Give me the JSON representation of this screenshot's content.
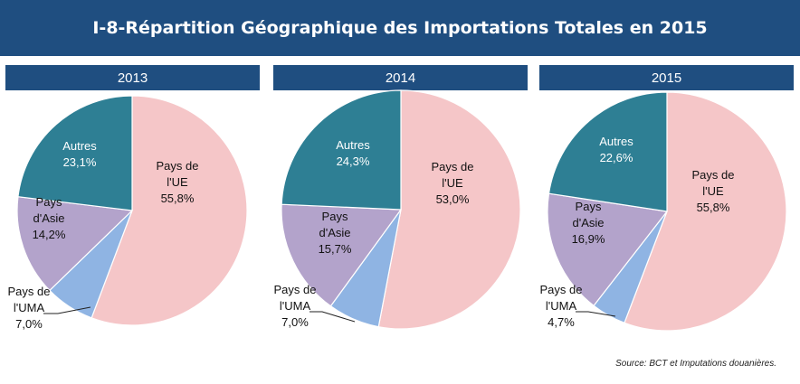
{
  "page_title": "I-8-Répartition Géographique des Importations Totales en 2015",
  "source": "Source: BCT et Imputations douanières.",
  "chart_data": [
    {
      "type": "pie",
      "title": "2013",
      "categories": [
        "Pays de l'UE",
        "Pays de l'UMA",
        "Pays d'Asie",
        "Autres"
      ],
      "values": [
        55.8,
        7.0,
        14.2,
        23.1
      ],
      "labels": [
        [
          "Pays de",
          "l'UE",
          "55,8%"
        ],
        [
          "Pays de",
          "l'UMA",
          "7,0%"
        ],
        [
          "Pays",
          "d'Asie",
          "14,2%"
        ],
        [
          "Autres",
          "23,1%"
        ]
      ],
      "colors": [
        "#f5c6c8",
        "#8fb4e3",
        "#b3a3cb",
        "#2e7f94"
      ]
    },
    {
      "type": "pie",
      "title": "2014",
      "categories": [
        "Pays de l'UE",
        "Pays de l'UMA",
        "Pays d'Asie",
        "Autres"
      ],
      "values": [
        53.0,
        7.0,
        15.7,
        24.3
      ],
      "labels": [
        [
          "Pays de",
          "l'UE",
          "53,0%"
        ],
        [
          "Pays de",
          "l'UMA",
          "7,0%"
        ],
        [
          "Pays",
          "d'Asie",
          "15,7%"
        ],
        [
          "Autres",
          "24,3%"
        ]
      ],
      "colors": [
        "#f5c6c8",
        "#8fb4e3",
        "#b3a3cb",
        "#2e7f94"
      ]
    },
    {
      "type": "pie",
      "title": "2015",
      "categories": [
        "Pays de l'UE",
        "Pays de l'UMA",
        "Pays d'Asie",
        "Autres"
      ],
      "values": [
        55.8,
        4.7,
        16.9,
        22.6
      ],
      "labels": [
        [
          "Pays de",
          "l'UE",
          "55,8%"
        ],
        [
          "Pays de",
          "l'UMA",
          "4,7%"
        ],
        [
          "Pays",
          "d'Asie",
          "16,9%"
        ],
        [
          "Autres",
          "22,6%"
        ]
      ],
      "colors": [
        "#f5c6c8",
        "#8fb4e3",
        "#b3a3cb",
        "#2e7f94"
      ]
    }
  ]
}
